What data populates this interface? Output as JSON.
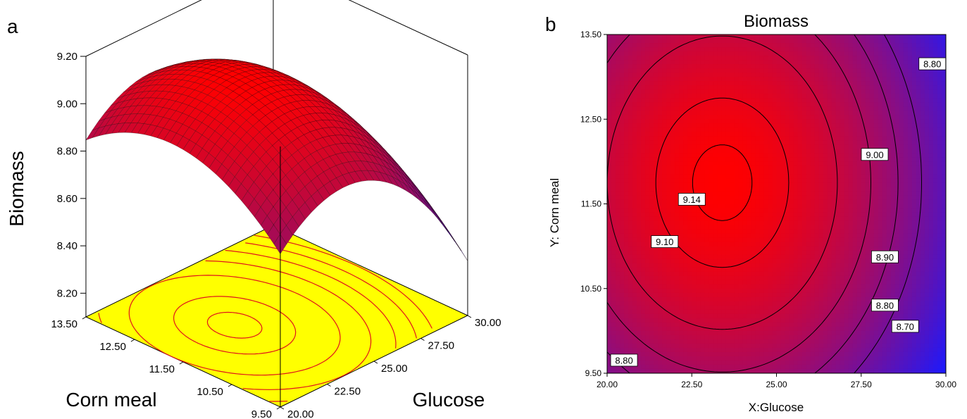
{
  "panels": [
    {
      "letter": "a",
      "chart_data": {
        "type": "surface3d",
        "title": "",
        "zlabel": "Biomass",
        "xlabel": "Glucose",
        "ylabel": "Corn meal",
        "x_range": [
          20.0,
          30.0
        ],
        "y_range": [
          9.5,
          13.5
        ],
        "z_range": [
          8.1,
          9.2
        ],
        "x_ticks": [
          "20.00",
          "22.50",
          "25.00",
          "27.50",
          "30.00"
        ],
        "y_ticks": [
          "9.50",
          "10.50",
          "11.50",
          "12.50",
          "13.50"
        ],
        "z_ticks": [
          "8.20",
          "8.40",
          "8.60",
          "8.80",
          "9.00",
          "9.20"
        ],
        "model": {
          "x0": 23.4,
          "y0": 11.75,
          "zmax": 9.15,
          "ax": 0.013,
          "ay": 0.05
        },
        "floor_contours": true,
        "floor_color": "#ffff00",
        "contour_color": "#e0141b",
        "surface_high_color": "#ff0000",
        "surface_low_color": "#3d16b8"
      }
    },
    {
      "letter": "b",
      "chart_data": {
        "type": "contour",
        "title": "Biomass",
        "xlabel": "X:Glucose",
        "ylabel": "Y: Corn meal",
        "xlim": [
          20.0,
          30.0
        ],
        "ylim": [
          9.5,
          13.5
        ],
        "x_ticks": [
          "20.00",
          "22.50",
          "25.00",
          "27.50",
          "30.00"
        ],
        "y_ticks": [
          "9.50",
          "10.50",
          "11.50",
          "12.50",
          "13.50"
        ],
        "model": {
          "x0": 23.4,
          "y0": 11.75,
          "zmax": 9.15,
          "ax": 0.013,
          "ay": 0.05
        },
        "levels": [
          9.14,
          9.1,
          9.0,
          8.9,
          8.8,
          8.7
        ],
        "contour_labels": [
          {
            "text": "9.14",
            "x": 22.5,
            "y": 11.55
          },
          {
            "text": "9.10",
            "x": 21.7,
            "y": 11.05
          },
          {
            "text": "9.00",
            "x": 27.9,
            "y": 12.08
          },
          {
            "text": "8.90",
            "x": 28.2,
            "y": 10.87
          },
          {
            "text": "8.80",
            "x": 28.2,
            "y": 10.3
          },
          {
            "text": "8.70",
            "x": 28.8,
            "y": 10.05
          },
          {
            "text": "8.80",
            "x": 29.6,
            "y": 13.15
          },
          {
            "text": "8.80",
            "x": 20.5,
            "y": 9.65
          }
        ],
        "high_color": "#ff0000",
        "low_color": "#1a1aff"
      }
    }
  ]
}
